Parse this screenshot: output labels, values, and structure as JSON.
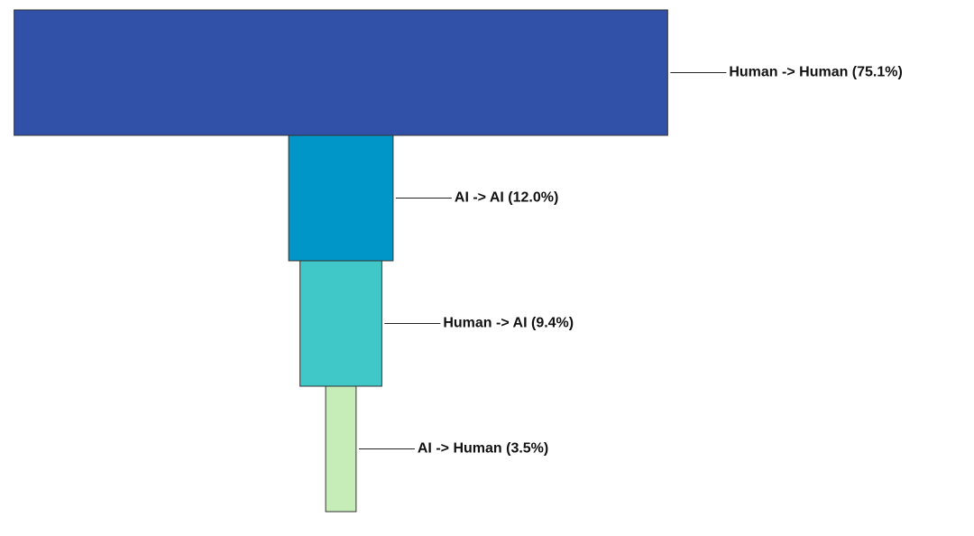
{
  "chart_data": {
    "type": "funnel",
    "values": [
      75.1,
      12.0,
      9.4,
      3.5
    ],
    "value_labels": [
      "Human -> Human (75.1%)",
      "AI -> AI (12.0%)",
      "Human -> AI (9.4%)",
      "AI -> Human (3.5%)"
    ],
    "colors": [
      "#3150a8",
      "#0096c8",
      "#40c8c8",
      "#c6ecb8"
    ]
  }
}
